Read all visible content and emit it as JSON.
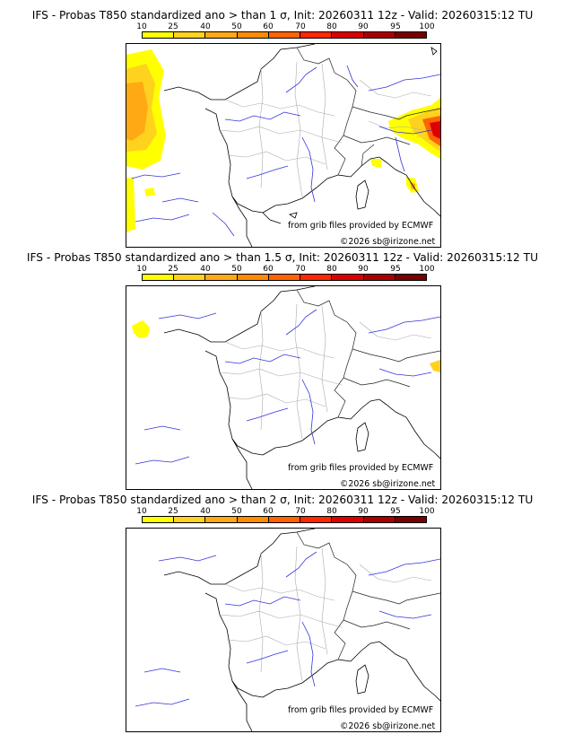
{
  "panels": [
    {
      "title": "IFS - Probas T850  standardized ano > than 1 σ, Init: 20260311 12z - Valid: 20260315:12 TU",
      "source_note": "from grib files provided by ECMWF",
      "copyright": "©2026 sb@irizone.net"
    },
    {
      "title": "IFS - Probas T850  standardized ano > than 1.5 σ, Init: 20260311 12z - Valid: 20260315:12 TU",
      "source_note": "from grib files provided by ECMWF",
      "copyright": "©2026 sb@irizone.net"
    },
    {
      "title": "IFS - Probas T850  standardized ano > than 2 σ, Init: 20260311 12z - Valid: 20260315:12 TU",
      "source_note": "from grib files provided by ECMWF",
      "copyright": "©2026 sb@irizone.net"
    }
  ],
  "legend": {
    "labels": [
      "10",
      "25",
      "40",
      "50",
      "60",
      "70",
      "80",
      "90",
      "95",
      "100"
    ],
    "colors": [
      "#ffff00",
      "#ffd21e",
      "#ffaa14",
      "#ff8c00",
      "#ff6400",
      "#ff2800",
      "#dc0000",
      "#aa0000",
      "#780000"
    ]
  }
}
